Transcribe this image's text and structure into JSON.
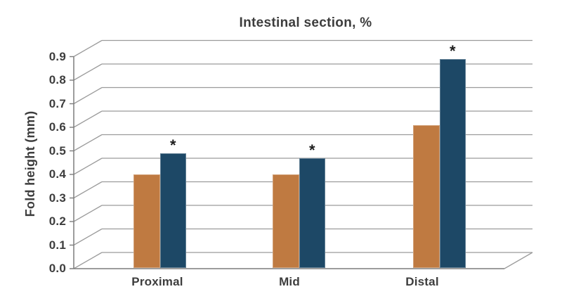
{
  "chart_data": {
    "type": "bar",
    "title": "Intestinal section, %",
    "xlabel": "",
    "ylabel": "Fold height (mm)",
    "categories": [
      "Proximal",
      "Mid",
      "Distal"
    ],
    "series": [
      {
        "name": "orange",
        "color": "#bf7a41",
        "values": [
          0.4,
          0.4,
          0.61
        ]
      },
      {
        "name": "navy",
        "color": "#1d4866",
        "values": [
          0.49,
          0.47,
          0.89
        ],
        "significance_markers": [
          "*",
          "*",
          "*"
        ]
      }
    ],
    "ylim": [
      0.0,
      0.9
    ],
    "ytick_step": 0.1,
    "yticks": [
      "0.0",
      "0.1",
      "0.2",
      "0.3",
      "0.4",
      "0.5",
      "0.6",
      "0.7",
      "0.8",
      "0.9"
    ],
    "grid": "horizontal",
    "legend": "none",
    "effect": "pseudo-3d-depth"
  },
  "colors": {
    "background": "#ffffff",
    "gridline": "#9b9b9b",
    "axis": "#7d7d7d",
    "text": "#3d3d3d",
    "marker": "#1c1c1c"
  }
}
